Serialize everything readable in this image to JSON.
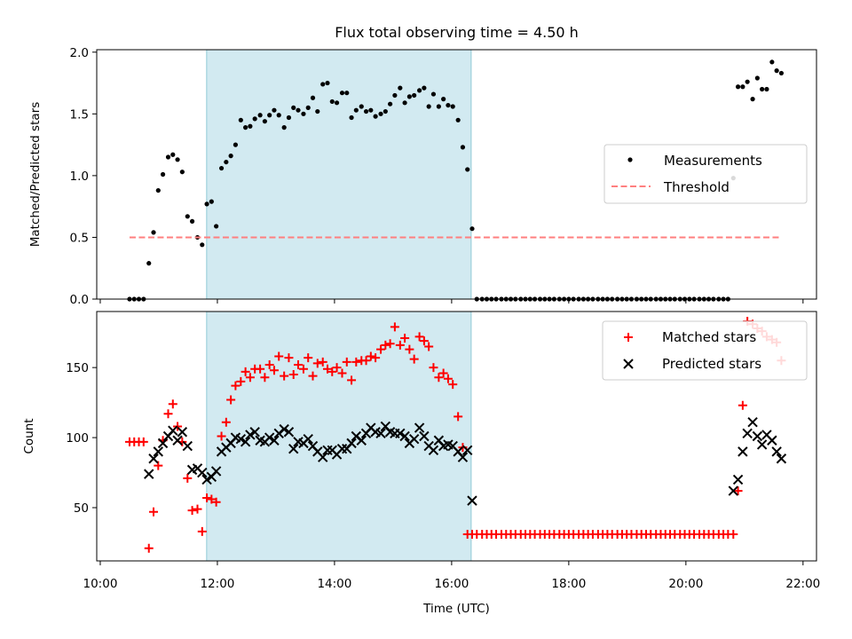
{
  "chart_data": [
    {
      "type": "scatter",
      "title": "Flux total observing time = 4.50 h",
      "xlabel": "",
      "ylabel": "Matched/Predicted stars",
      "ylim": [
        0.0,
        2.02
      ],
      "xlim_hours": [
        9.94,
        22.23
      ],
      "yticks": [
        0.0,
        0.5,
        1.0,
        1.5,
        2.0
      ],
      "ytick_labels": [
        "0.0",
        "0.5",
        "1.0",
        "1.5",
        "2.0"
      ],
      "shaded_interval": {
        "start": "11:49",
        "end": "16:20",
        "color": "#add8e6"
      },
      "legend": {
        "placement": "center-right",
        "entries": [
          "Measurements",
          "Threshold"
        ]
      },
      "series": [
        {
          "name": "Measurements",
          "marker": "dot",
          "color": "#000000",
          "x": [
            10.5,
            10.58,
            10.66,
            10.74,
            10.83,
            10.91,
            10.99,
            11.07,
            11.16,
            11.24,
            11.32,
            11.4,
            11.49,
            11.57,
            11.66,
            11.74,
            11.82,
            11.9,
            11.98,
            12.07,
            12.15,
            12.23,
            12.31,
            12.4,
            12.48,
            12.56,
            12.64,
            12.73,
            12.81,
            12.89,
            12.97,
            13.05,
            13.14,
            13.22,
            13.3,
            13.38,
            13.47,
            13.55,
            13.63,
            13.71,
            13.8,
            13.88,
            13.96,
            14.04,
            14.13,
            14.21,
            14.29,
            14.37,
            14.46,
            14.54,
            14.62,
            14.7,
            14.79,
            14.87,
            14.95,
            15.03,
            15.12,
            15.2,
            15.28,
            15.36,
            15.45,
            15.53,
            15.61,
            15.69,
            15.78,
            15.86,
            15.94,
            16.02,
            16.11,
            16.19,
            16.27,
            16.35,
            16.43,
            16.52,
            16.6,
            16.68,
            16.76,
            16.85,
            16.93,
            17.01,
            17.09,
            17.18,
            17.26,
            17.34,
            17.42,
            17.51,
            17.59,
            17.67,
            17.75,
            17.84,
            17.92,
            18.0,
            18.08,
            18.17,
            18.25,
            18.33,
            18.41,
            18.5,
            18.58,
            18.66,
            18.74,
            18.83,
            18.91,
            18.99,
            19.07,
            19.16,
            19.24,
            19.32,
            19.4,
            19.49,
            19.57,
            19.65,
            19.73,
            19.81,
            19.9,
            19.98,
            20.06,
            20.14,
            20.23,
            20.31,
            20.39,
            20.47,
            20.56,
            20.64,
            20.72,
            20.81,
            20.89,
            20.97,
            21.05,
            21.14,
            21.22,
            21.3,
            21.38,
            21.47,
            21.55,
            21.63
          ],
          "y": [
            0.0,
            0.0,
            0.0,
            0.0,
            0.29,
            0.54,
            0.88,
            1.01,
            1.15,
            1.17,
            1.13,
            1.03,
            0.67,
            0.63,
            0.5,
            0.44,
            0.77,
            0.79,
            0.59,
            1.06,
            1.11,
            1.16,
            1.25,
            1.45,
            1.39,
            1.4,
            1.46,
            1.49,
            1.44,
            1.49,
            1.53,
            1.49,
            1.39,
            1.47,
            1.55,
            1.53,
            1.5,
            1.55,
            1.63,
            1.52,
            1.74,
            1.75,
            1.6,
            1.59,
            1.67,
            1.67,
            1.47,
            1.53,
            1.56,
            1.52,
            1.53,
            1.48,
            1.5,
            1.52,
            1.58,
            1.65,
            1.71,
            1.59,
            1.64,
            1.65,
            1.69,
            1.71,
            1.56,
            1.66,
            1.56,
            1.62,
            1.57,
            1.56,
            1.45,
            1.23,
            1.05,
            0.57,
            0.0,
            0.0,
            0.0,
            0.0,
            0.0,
            0.0,
            0.0,
            0.0,
            0.0,
            0.0,
            0.0,
            0.0,
            0.0,
            0.0,
            0.0,
            0.0,
            0.0,
            0.0,
            0.0,
            0.0,
            0.0,
            0.0,
            0.0,
            0.0,
            0.0,
            0.0,
            0.0,
            0.0,
            0.0,
            0.0,
            0.0,
            0.0,
            0.0,
            0.0,
            0.0,
            0.0,
            0.0,
            0.0,
            0.0,
            0.0,
            0.0,
            0.0,
            0.0,
            0.0,
            0.0,
            0.0,
            0.0,
            0.0,
            0.0,
            0.0,
            0.0,
            0.0,
            0.0,
            0.98,
            1.72,
            1.72,
            1.76,
            1.62,
            1.79,
            1.7,
            1.7,
            1.92,
            1.85,
            1.83
          ]
        },
        {
          "name": "Threshold",
          "style": "dashed",
          "color": "#ff7f7f",
          "x": [
            10.5,
            21.63
          ],
          "y": [
            0.5,
            0.5
          ]
        }
      ]
    },
    {
      "type": "scatter",
      "title": "",
      "xlabel": "Time (UTC)",
      "ylabel": "Count",
      "ylim": [
        12,
        190
      ],
      "xlim_hours": [
        9.94,
        22.23
      ],
      "yticks": [
        50,
        100,
        150
      ],
      "ytick_labels": [
        "50",
        "100",
        "150"
      ],
      "xticks_hours": [
        10,
        12,
        14,
        16,
        18,
        20,
        22
      ],
      "xtick_labels": [
        "10:00",
        "12:00",
        "14:00",
        "16:00",
        "18:00",
        "20:00",
        "22:00"
      ],
      "shaded_interval": {
        "start": "11:49",
        "end": "16:20",
        "color": "#add8e6"
      },
      "legend": {
        "placement": "top-right",
        "entries": [
          "Matched stars",
          "Predicted stars"
        ]
      },
      "series": [
        {
          "name": "Matched stars",
          "marker": "plus",
          "color": "#ff0000",
          "x": [
            10.5,
            10.58,
            10.66,
            10.74,
            10.83,
            10.91,
            10.99,
            11.07,
            11.16,
            11.24,
            11.32,
            11.4,
            11.49,
            11.57,
            11.66,
            11.74,
            11.82,
            11.9,
            11.98,
            12.07,
            12.15,
            12.23,
            12.31,
            12.4,
            12.48,
            12.56,
            12.64,
            12.73,
            12.81,
            12.89,
            12.97,
            13.05,
            13.14,
            13.22,
            13.3,
            13.38,
            13.47,
            13.55,
            13.63,
            13.71,
            13.8,
            13.88,
            13.96,
            14.04,
            14.13,
            14.21,
            14.29,
            14.37,
            14.46,
            14.54,
            14.62,
            14.7,
            14.79,
            14.87,
            14.95,
            15.03,
            15.12,
            15.2,
            15.28,
            15.36,
            15.45,
            15.53,
            15.61,
            15.69,
            15.78,
            15.86,
            15.94,
            16.02,
            16.11,
            16.19,
            16.27,
            16.35,
            16.43,
            16.52,
            16.6,
            16.68,
            16.76,
            16.85,
            16.93,
            17.01,
            17.09,
            17.18,
            17.26,
            17.34,
            17.42,
            17.51,
            17.59,
            17.67,
            17.75,
            17.84,
            17.92,
            18.0,
            18.08,
            18.17,
            18.25,
            18.33,
            18.41,
            18.5,
            18.58,
            18.66,
            18.74,
            18.83,
            18.91,
            18.99,
            19.07,
            19.16,
            19.24,
            19.32,
            19.4,
            19.49,
            19.57,
            19.65,
            19.73,
            19.81,
            19.9,
            19.98,
            20.06,
            20.14,
            20.23,
            20.31,
            20.39,
            20.47,
            20.56,
            20.64,
            20.72,
            20.81,
            20.89,
            20.97,
            21.05,
            21.14,
            21.22,
            21.3,
            21.38,
            21.47,
            21.55,
            21.63
          ],
          "y": [
            97,
            97,
            97,
            97,
            21,
            47,
            80,
            98,
            117,
            124,
            108,
            97,
            71,
            48,
            49,
            33,
            57,
            56,
            54,
            101,
            111,
            127,
            137,
            140,
            147,
            143,
            149,
            149,
            143,
            152,
            148,
            158,
            144,
            157,
            145,
            152,
            149,
            157,
            144,
            153,
            154,
            149,
            147,
            150,
            146,
            154,
            141,
            154,
            155,
            155,
            158,
            157,
            163,
            166,
            167,
            179,
            166,
            171,
            163,
            156,
            172,
            169,
            165,
            150,
            143,
            146,
            142,
            138,
            115,
            93,
            31,
            31,
            31,
            31,
            31,
            31,
            31,
            31,
            31,
            31,
            31,
            31,
            31,
            31,
            31,
            31,
            31,
            31,
            31,
            31,
            31,
            31,
            31,
            31,
            31,
            31,
            31,
            31,
            31,
            31,
            31,
            31,
            31,
            31,
            31,
            31,
            31,
            31,
            31,
            31,
            31,
            31,
            31,
            31,
            31,
            31,
            31,
            31,
            31,
            31,
            31,
            31,
            31,
            31,
            31,
            31,
            62,
            123,
            183,
            181,
            178,
            176,
            172,
            170,
            168,
            155
          ]
        },
        {
          "name": "Predicted stars",
          "marker": "x",
          "color": "#000000",
          "x": [
            10.83,
            10.91,
            10.99,
            11.07,
            11.16,
            11.24,
            11.32,
            11.4,
            11.49,
            11.57,
            11.66,
            11.74,
            11.82,
            11.9,
            11.98,
            12.07,
            12.15,
            12.23,
            12.31,
            12.4,
            12.48,
            12.56,
            12.64,
            12.73,
            12.81,
            12.89,
            12.97,
            13.05,
            13.14,
            13.22,
            13.3,
            13.38,
            13.47,
            13.55,
            13.63,
            13.71,
            13.8,
            13.88,
            13.96,
            14.04,
            14.13,
            14.21,
            14.29,
            14.37,
            14.46,
            14.54,
            14.62,
            14.7,
            14.79,
            14.87,
            14.95,
            15.03,
            15.12,
            15.2,
            15.28,
            15.36,
            15.45,
            15.53,
            15.61,
            15.69,
            15.78,
            15.86,
            15.94,
            16.02,
            16.11,
            16.19,
            16.27,
            16.35,
            20.81,
            20.89,
            20.97,
            21.05,
            21.14,
            21.22,
            21.3,
            21.38,
            21.47,
            21.55,
            21.63
          ],
          "y": [
            74,
            85,
            90,
            96,
            101,
            105,
            98,
            104,
            94,
            77,
            78,
            75,
            70,
            72,
            76,
            90,
            93,
            96,
            100,
            99,
            97,
            102,
            104,
            98,
            97,
            100,
            98,
            103,
            106,
            104,
            92,
            97,
            96,
            99,
            94,
            90,
            86,
            91,
            91,
            88,
            92,
            92,
            96,
            101,
            98,
            103,
            107,
            104,
            103,
            108,
            104,
            103,
            103,
            101,
            96,
            99,
            107,
            101,
            94,
            91,
            98,
            94,
            95,
            94,
            90,
            86,
            91,
            55,
            62,
            70,
            90,
            103,
            111,
            101,
            95,
            102,
            98,
            90,
            85
          ]
        }
      ]
    }
  ]
}
